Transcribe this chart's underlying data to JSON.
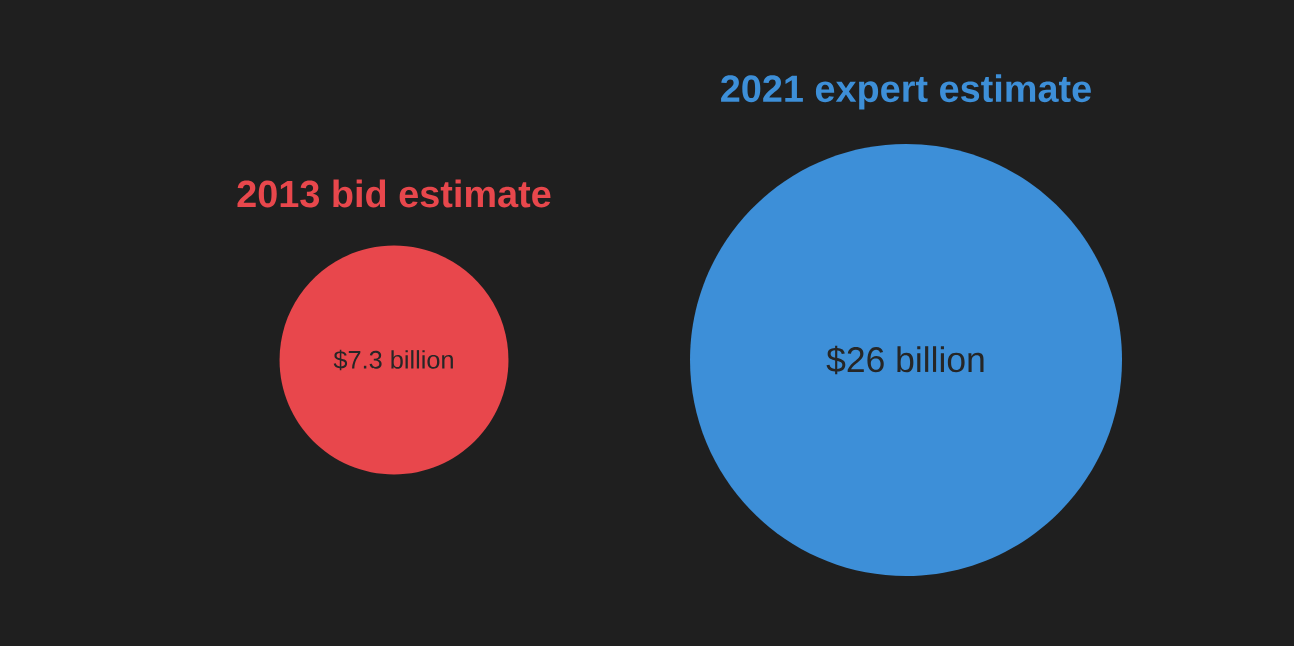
{
  "chart_data": {
    "type": "other",
    "categories": [
      "2013 bid estimate",
      "2021 expert estimate"
    ],
    "values": [
      7.3,
      26
    ],
    "value_labels": [
      "$7.3 billion",
      "$26 billion"
    ],
    "colors": [
      "#e8474c",
      "#3d8fd8"
    ]
  }
}
